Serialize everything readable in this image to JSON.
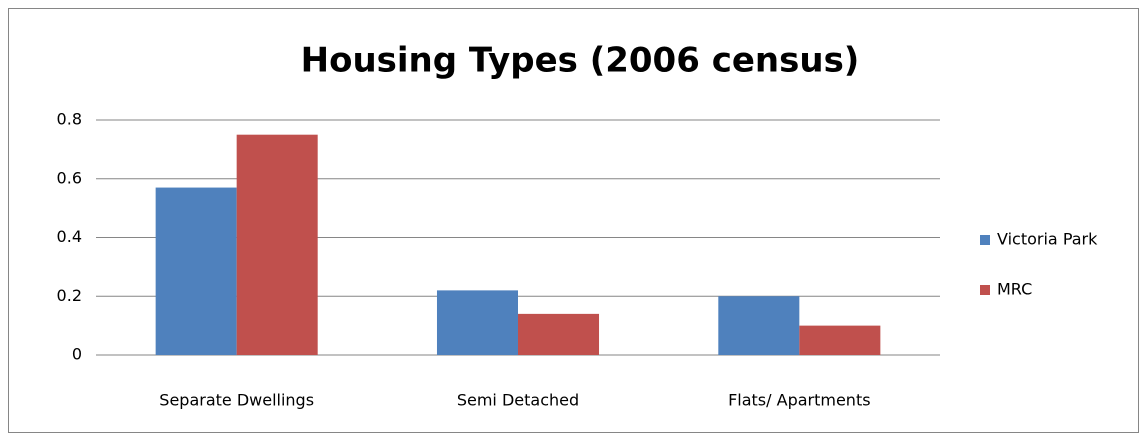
{
  "chart_data": {
    "type": "bar",
    "title": "Housing Types (2006 census)",
    "categories": [
      "Separate Dwellings",
      "Semi Detached",
      "Flats/ Apartments"
    ],
    "series": [
      {
        "name": "Victoria Park",
        "color": "#4f81bd",
        "values": [
          0.57,
          0.22,
          0.2
        ]
      },
      {
        "name": "MRC",
        "color": "#c0504d",
        "values": [
          0.75,
          0.14,
          0.1
        ]
      }
    ],
    "ylim": [
      0,
      0.8
    ],
    "yticks": [
      0,
      0.2,
      0.4,
      0.6,
      0.8
    ],
    "grid": true,
    "legend": "right"
  }
}
